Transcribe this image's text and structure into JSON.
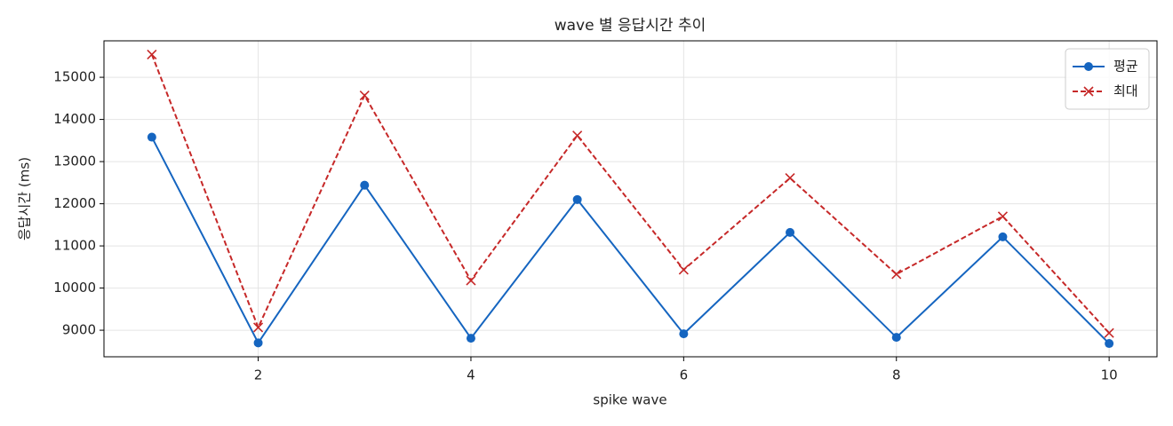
{
  "chart_data": {
    "type": "line",
    "title": "wave 별 응답시간 추이",
    "x_label": "spike wave",
    "y_label": "응답시간 (ms)",
    "x": [
      1,
      2,
      3,
      4,
      5,
      6,
      7,
      8,
      9,
      10
    ],
    "series": [
      {
        "name": "평균",
        "color": "#1565c0",
        "marker": "o",
        "dash": false,
        "values": [
          13580,
          8700,
          12440,
          8810,
          12100,
          8915,
          11320,
          8830,
          11215,
          8685
        ]
      },
      {
        "name": "최대",
        "color": "#c62828",
        "marker": "x",
        "dash": true,
        "values": [
          15540,
          9065,
          14570,
          10180,
          13620,
          10435,
          12610,
          10330,
          11700,
          8935
        ]
      }
    ],
    "xlim": [
      0.55,
      10.45
    ],
    "xticks": [
      2,
      4,
      6,
      8,
      10
    ],
    "ylim": [
      8370,
      15865
    ],
    "yticks": [
      9000,
      10000,
      11000,
      12000,
      13000,
      14000,
      15000
    ],
    "grid": true,
    "legend": "upper right"
  }
}
